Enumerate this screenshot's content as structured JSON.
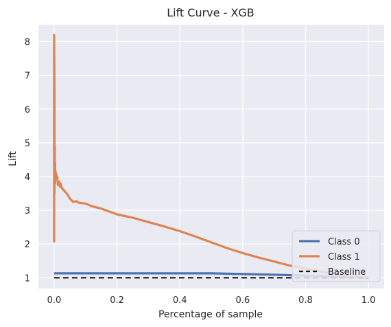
{
  "chart_data": {
    "type": "line",
    "title": "Lift Curve - XGB",
    "xlabel": "Percentage of sample",
    "ylabel": "Lift",
    "xlim": [
      -0.05,
      1.05
    ],
    "ylim": [
      0.68,
      8.5
    ],
    "xticks": [
      0.0,
      0.2,
      0.4,
      0.6,
      0.8,
      1.0
    ],
    "xtick_labels": [
      "0.0",
      "0.2",
      "0.4",
      "0.6",
      "0.8",
      "1.0"
    ],
    "yticks": [
      1,
      2,
      3,
      4,
      5,
      6,
      7,
      8
    ],
    "ytick_labels": [
      "1",
      "2",
      "3",
      "4",
      "5",
      "6",
      "7",
      "8"
    ],
    "grid": true,
    "legend_position": "bottom-right",
    "series": [
      {
        "name": "Class 0",
        "color": "#4c72b0",
        "style": "solid",
        "x": [
          0.0,
          0.1,
          0.2,
          0.3,
          0.4,
          0.5,
          0.55,
          0.6,
          0.7,
          0.8,
          0.9,
          0.95,
          1.0
        ],
        "y": [
          1.13,
          1.13,
          1.13,
          1.13,
          1.13,
          1.13,
          1.12,
          1.11,
          1.09,
          1.06,
          1.03,
          1.02,
          1.0
        ]
      },
      {
        "name": "Class 1",
        "color": "#dd8452",
        "style": "solid",
        "x": [
          0.0,
          0.0,
          0.001,
          0.001,
          0.002,
          0.002,
          0.003,
          0.003,
          0.004,
          0.005,
          0.006,
          0.008,
          0.01,
          0.012,
          0.015,
          0.018,
          0.02,
          0.025,
          0.03,
          0.04,
          0.05,
          0.06,
          0.07,
          0.08,
          0.1,
          0.12,
          0.15,
          0.2,
          0.25,
          0.3,
          0.35,
          0.4,
          0.45,
          0.5,
          0.55,
          0.6,
          0.65,
          0.7,
          0.75,
          0.8,
          0.85,
          0.9,
          0.95,
          1.0
        ],
        "y": [
          2.05,
          8.2,
          6.5,
          3.5,
          4.9,
          3.9,
          4.4,
          3.8,
          4.2,
          3.95,
          4.1,
          3.95,
          4.0,
          3.75,
          3.85,
          3.7,
          3.8,
          3.65,
          3.6,
          3.5,
          3.35,
          3.25,
          3.27,
          3.22,
          3.2,
          3.12,
          3.05,
          2.88,
          2.78,
          2.65,
          2.52,
          2.38,
          2.22,
          2.05,
          1.88,
          1.73,
          1.6,
          1.48,
          1.36,
          1.27,
          1.18,
          1.11,
          1.05,
          1.0
        ]
      },
      {
        "name": "Baseline",
        "color": "#1a1a1a",
        "style": "dashed",
        "x": [
          0.0,
          1.0
        ],
        "y": [
          1.0,
          1.0
        ]
      }
    ]
  }
}
